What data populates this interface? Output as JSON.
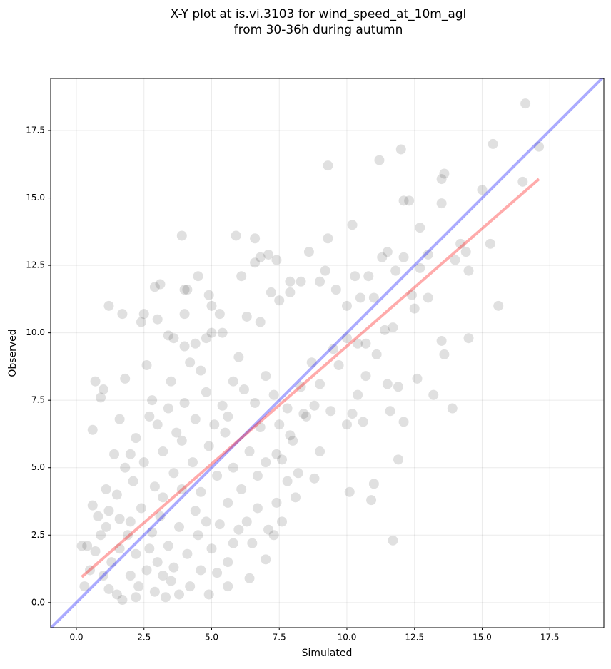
{
  "chart_data": {
    "type": "scatter",
    "title": [
      "X-Y plot at is.vi.3103 for wind_speed_at_10m_agl",
      "from 30-36h during autumn"
    ],
    "xlabel": "Simulated",
    "ylabel": "Observed",
    "xlim": [
      -0.95,
      19.5
    ],
    "ylim": [
      -0.93,
      19.43
    ],
    "xticks": [
      {
        "value": 0,
        "label": "0.0"
      },
      2.5,
      {
        "value": 5,
        "label": "5.0"
      },
      7.5,
      {
        "value": 10,
        "label": "10.0"
      },
      12.5,
      {
        "value": 15,
        "label": "15.0"
      },
      17.5
    ],
    "yticks": [
      {
        "value": 0,
        "label": "0.0"
      },
      2.5,
      {
        "value": 5,
        "label": "5.0"
      },
      7.5,
      {
        "value": 10,
        "label": "10.0"
      },
      12.5,
      {
        "value": 15,
        "label": "15.0"
      },
      17.5
    ],
    "grid": true,
    "color": "#000000",
    "alpha": 0.12,
    "x": [
      16.6,
      17.1,
      15.4,
      12.0,
      11.2,
      9.3,
      13.6,
      13.5,
      16.5,
      15.0,
      12.1,
      12.3,
      13.5,
      10.2,
      3.9,
      5.9,
      6.6,
      9.3,
      15.3,
      12.7,
      14.2,
      14.4,
      11.5,
      8.6,
      7.1,
      6.8,
      6.6,
      7.4,
      12.1,
      13.0,
      14.5,
      14.0,
      12.7,
      11.8,
      10.3,
      9.2,
      7.9,
      6.1,
      4.5,
      2.9,
      3.1,
      4.0,
      4.1,
      4.9,
      5.3,
      5.0,
      1.2,
      1.7,
      2.4,
      2.5,
      4.0,
      3.0,
      3.4,
      3.6,
      4.0,
      4.4,
      4.8,
      5.0,
      5.4,
      6.3,
      6.8,
      7.2,
      7.5,
      7.9,
      8.3,
      9.0,
      9.6,
      10.0,
      10.5,
      11.0,
      10.8,
      11.3,
      12.4,
      12.5,
      13.0,
      11.7,
      11.4,
      10.4,
      10.7,
      11.1,
      9.7,
      9.5,
      10.0,
      10.7,
      11.5,
      11.9,
      12.6,
      13.2,
      13.9,
      13.6,
      14.5,
      13.5,
      12.1,
      11.6,
      10.6,
      10.4,
      10.2,
      10.0,
      9.4,
      8.8,
      8.5,
      9.0,
      8.7,
      8.3,
      9.0,
      8.8,
      8.2,
      7.6,
      7.9,
      7.8,
      8.1,
      7.6,
      7.4,
      7.3,
      7.1,
      7.0,
      6.4,
      5.6,
      5.6,
      11.7,
      10.1,
      10.9,
      11.0,
      11.9,
      15.6,
      0.6,
      0.7,
      1.0,
      0.9,
      1.8,
      0.2,
      0.4,
      0.6,
      1.6,
      2.6,
      1.0,
      1.2,
      1.5,
      1.3,
      0.9,
      1.1,
      1.6,
      2.0,
      2.3,
      2.6,
      2.9,
      3.2,
      3.5,
      3.8,
      4.2,
      4.6,
      2.0,
      2.4,
      2.8,
      3.1,
      3.4,
      3.8,
      4.1,
      4.5,
      5.0,
      5.3,
      5.8,
      6.3,
      6.7,
      1.5,
      1.8,
      2.1,
      2.5,
      2.9,
      3.2,
      3.6,
      3.9,
      4.3,
      4.6,
      4.9,
      5.2,
      5.5,
      5.8,
      6.1,
      6.4,
      6.7,
      7.0,
      7.4,
      3.0,
      3.4,
      3.7,
      4.0,
      4.4,
      4.8,
      5.1,
      5.4,
      5.8,
      6.2,
      6.6,
      7.0,
      7.3,
      6.0,
      4.6,
      4.2,
      3.5,
      2.8,
      2.2,
      1.4,
      1.1,
      0.8,
      0.5,
      0.3,
      0.7,
      1.9,
      2.2,
      2.7,
      3.0,
      3.6,
      4.4,
      4.8,
      5.6,
      6.0,
      6.5,
      5.2,
      4.9,
      1.7,
      2.2,
      3.3,
      1.2,
      1.6,
      3.2,
      3.9,
      5.6,
      6.8,
      7.5,
      8.0,
      7.8,
      8.4,
      2.0,
      2.7
    ],
    "y": [
      18.5,
      16.9,
      17.0,
      16.8,
      16.4,
      16.2,
      15.9,
      15.7,
      15.6,
      15.3,
      14.9,
      14.9,
      14.8,
      14.0,
      13.6,
      13.6,
      13.5,
      13.5,
      13.3,
      13.9,
      13.3,
      13.0,
      13.0,
      13.0,
      12.9,
      12.8,
      12.6,
      12.7,
      12.8,
      12.9,
      12.3,
      12.7,
      12.4,
      12.3,
      12.1,
      12.3,
      11.9,
      12.1,
      12.1,
      11.7,
      11.8,
      11.6,
      11.6,
      11.4,
      10.7,
      11.0,
      11.0,
      10.7,
      10.4,
      10.7,
      10.7,
      10.5,
      9.9,
      9.8,
      9.5,
      9.6,
      9.8,
      10.0,
      10.0,
      10.6,
      10.4,
      11.5,
      11.2,
      11.5,
      11.9,
      11.9,
      11.6,
      11.0,
      11.3,
      11.3,
      12.1,
      12.8,
      11.4,
      10.9,
      11.3,
      10.2,
      10.1,
      9.6,
      9.6,
      9.2,
      8.8,
      9.4,
      9.8,
      8.4,
      8.1,
      8.0,
      8.3,
      7.7,
      7.2,
      9.2,
      9.8,
      9.7,
      6.7,
      7.1,
      6.7,
      7.7,
      7.0,
      6.6,
      7.1,
      7.3,
      6.9,
      8.1,
      8.9,
      8.0,
      5.6,
      4.6,
      4.8,
      5.3,
      6.2,
      4.5,
      3.9,
      3.0,
      3.7,
      2.5,
      2.7,
      1.6,
      0.9,
      1.5,
      0.6,
      2.3,
      4.1,
      3.8,
      4.4,
      5.3,
      11.0,
      6.4,
      8.2,
      7.9,
      7.6,
      8.3,
      2.1,
      2.1,
      3.6,
      6.8,
      8.8,
      1.0,
      0.5,
      0.3,
      1.5,
      2.5,
      2.8,
      2.0,
      1.0,
      0.6,
      1.2,
      0.4,
      1.0,
      0.8,
      0.3,
      0.6,
      1.2,
      3.0,
      3.5,
      2.6,
      3.2,
      2.1,
      2.8,
      1.8,
      2.5,
      2.0,
      2.9,
      2.2,
      3.0,
      3.5,
      4.0,
      5.0,
      4.5,
      5.2,
      4.3,
      5.6,
      4.8,
      6.0,
      5.2,
      4.1,
      5.8,
      4.7,
      6.3,
      5.0,
      4.2,
      5.6,
      4.7,
      5.2,
      5.5,
      6.6,
      7.2,
      6.3,
      7.4,
      6.8,
      7.8,
      6.6,
      7.3,
      8.2,
      7.9,
      7.4,
      8.4,
      7.7,
      9.1,
      8.6,
      8.9,
      8.2,
      7.5,
      6.1,
      5.5,
      4.2,
      3.2,
      1.2,
      0.6,
      1.9,
      2.5,
      1.8,
      2.0,
      1.5,
      1.3,
      3.4,
      3.0,
      3.7,
      2.7,
      2.2,
      1.1,
      0.3,
      0.1,
      0.2,
      0.2,
      3.4,
      3.1,
      3.9,
      4.2,
      6.9,
      6.5,
      6.6,
      6.0,
      7.2,
      7.0,
      5.5,
      6.9
    ],
    "lines": [
      {
        "color": "#0000ff",
        "alpha": 0.33,
        "x": [
          -0.95,
          19.5
        ],
        "y": [
          -0.95,
          19.5
        ]
      },
      {
        "color": "#ff0000",
        "alpha": 0.33,
        "x": [
          0.2,
          17.1
        ],
        "y": [
          0.95,
          15.7
        ]
      }
    ]
  }
}
